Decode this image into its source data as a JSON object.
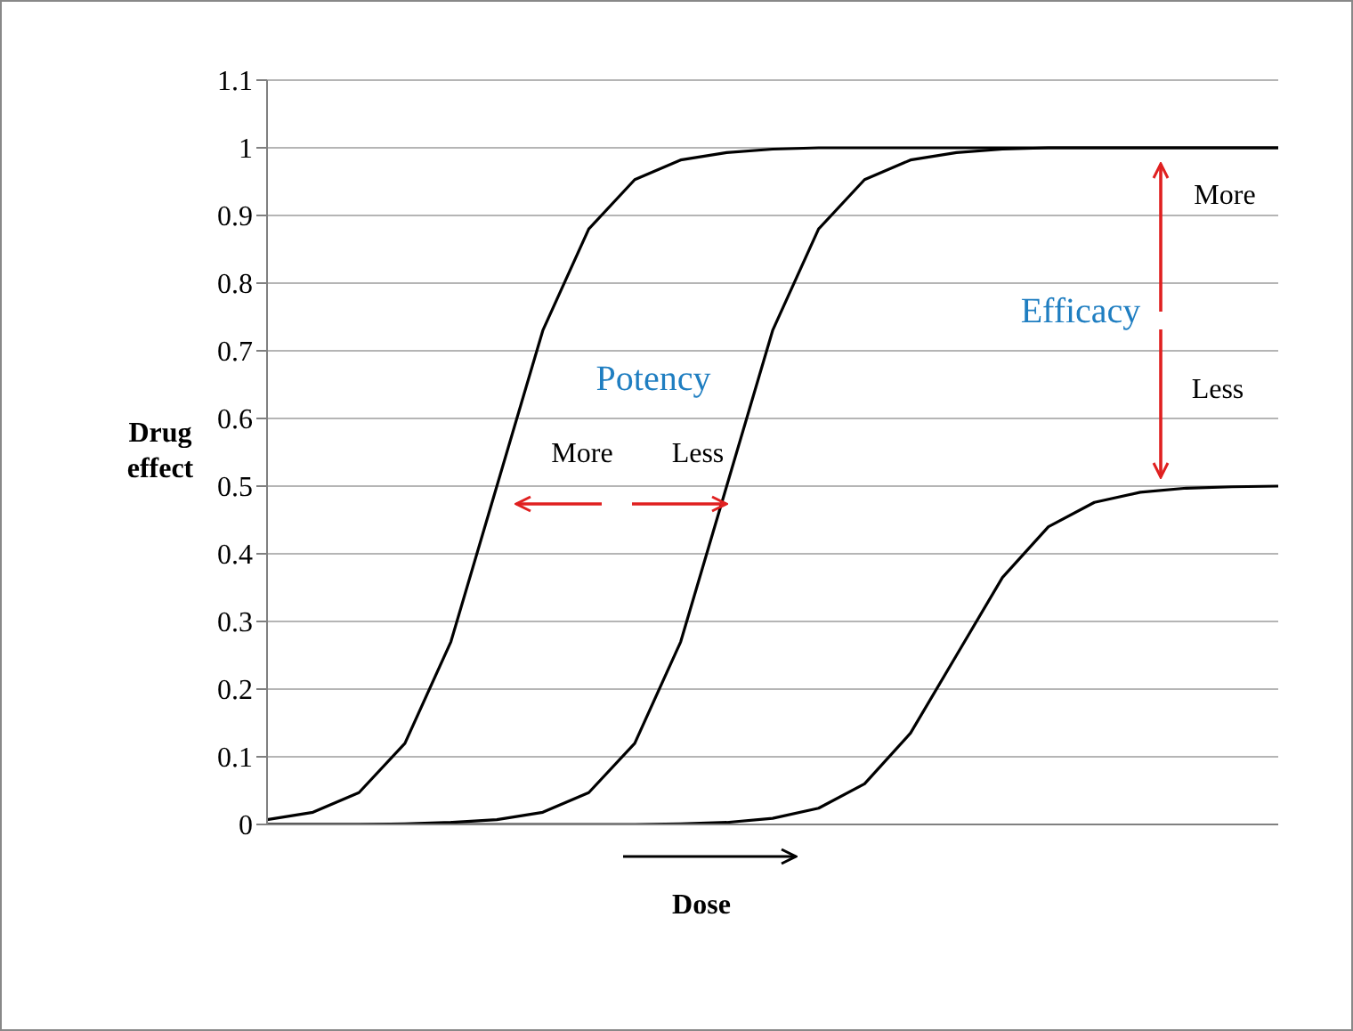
{
  "chart_data": {
    "type": "line",
    "xlabel": "Dose",
    "ylabel": "Drug effect",
    "categories": [
      null,
      null,
      null,
      null,
      null,
      null,
      null,
      null,
      null,
      null,
      null,
      null,
      null,
      null,
      null,
      null,
      null,
      null,
      null,
      null,
      null,
      null,
      null
    ],
    "series": [
      {
        "color": "#000000",
        "values": [
          0.007,
          0.018,
          0.047,
          0.12,
          0.27,
          0.5,
          0.73,
          0.88,
          0.953,
          0.982,
          0.993,
          0.998,
          1,
          1,
          1,
          1,
          1,
          1,
          1,
          1,
          1,
          1,
          1
        ]
      },
      {
        "color": "#000000",
        "values": [
          0,
          0,
          0,
          0.001,
          0.003,
          0.007,
          0.018,
          0.047,
          0.12,
          0.27,
          0.5,
          0.73,
          0.88,
          0.953,
          0.982,
          0.993,
          0.998,
          1,
          1,
          1,
          1,
          1,
          1
        ]
      },
      {
        "color": "#000000",
        "values": [
          0,
          0,
          0,
          0,
          0,
          0,
          0,
          0,
          0,
          0.001,
          0.003,
          0.009,
          0.024,
          0.06,
          0.135,
          0.25,
          0.365,
          0.44,
          0.476,
          0.491,
          0.497,
          0.499,
          0.5
        ]
      }
    ],
    "ylim": [
      0,
      1.1
    ],
    "yticks": [
      0,
      0.1,
      0.2,
      0.3,
      0.4,
      0.5,
      0.6,
      0.7,
      0.8,
      0.9,
      1,
      1.1
    ],
    "grid": "y",
    "tick_labels": "y",
    "marker": "none",
    "line_style": "solid",
    "annotations": [
      "Potency",
      "More",
      "Less",
      "Efficacy",
      "More",
      "Less"
    ]
  }
}
